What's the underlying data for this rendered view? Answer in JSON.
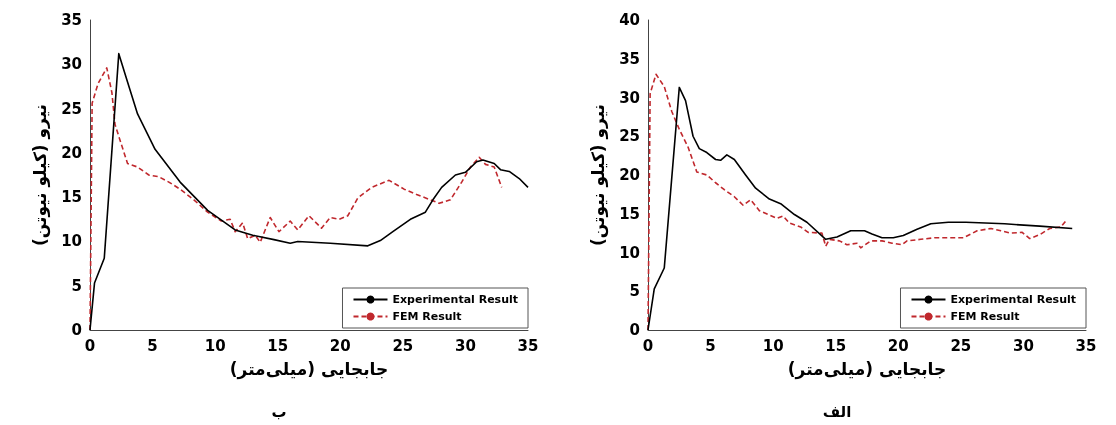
{
  "chart_data": [
    {
      "type": "line",
      "xlabel": "جابجایی (میلی‌متر)",
      "ylabel": "نیرو (کیلو نیوتن)",
      "annotations": [
        "ب"
      ],
      "xlim": [
        0,
        35
      ],
      "xticks": [
        0,
        5,
        10,
        15,
        20,
        25,
        30,
        35
      ],
      "ylim": [
        0,
        35
      ],
      "yticks": [
        0,
        5,
        10,
        15,
        20,
        25,
        30,
        35
      ],
      "grid": false,
      "legend": "bottom right",
      "marker": "none",
      "series": [
        {
          "name": "Experimental Result",
          "color": "#000000",
          "line_style": "solid",
          "x": [
            0,
            0.36,
            1.14,
            2.3,
            3.0,
            3.8,
            5.2,
            7.2,
            9.4,
            11.6,
            13.0,
            14.7,
            16.0,
            16.6,
            19.2,
            22.2,
            23.2,
            24.2,
            25.6,
            26.8,
            27.4,
            28.1,
            29.2,
            30.0,
            30.9,
            31.4,
            32.3,
            32.8,
            33.5,
            34.3,
            35.0
          ],
          "values": [
            0,
            5.3,
            8.1,
            31.2,
            28,
            24.4,
            20.4,
            16.7,
            13.5,
            11.3,
            10.7,
            10.2,
            9.8,
            10.0,
            9.8,
            9.5,
            10.1,
            11.1,
            12.5,
            13.3,
            14.7,
            16.1,
            17.5,
            17.8,
            19.0,
            19.2,
            18.8,
            18.1,
            17.9,
            17.1,
            16.1
          ]
        },
        {
          "name": "FEM Result",
          "color": "#c0282d",
          "line_style": "dashed",
          "x": [
            0,
            0.17,
            0.64,
            1.34,
            1.75,
            2.0,
            2.45,
            3.0,
            3.8,
            4.7,
            5.5,
            6.3,
            7.2,
            8.3,
            9.4,
            10.5,
            11.2,
            11.6,
            12.2,
            12.6,
            13.2,
            13.6,
            14.4,
            15.1,
            16.0,
            16.6,
            17.5,
            18.5,
            19.2,
            19.9,
            20.6,
            21.4,
            22.5,
            23.9,
            25.1,
            26.1,
            27.2,
            27.9,
            28.8,
            29.7,
            30.4,
            31.1,
            31.6,
            32.3,
            32.9
          ],
          "values": [
            0,
            25.6,
            27.8,
            29.6,
            26.8,
            23.2,
            21.2,
            18.8,
            18.4,
            17.5,
            17.3,
            16.7,
            15.9,
            14.7,
            13.3,
            12.3,
            12.5,
            11.1,
            12.1,
            10.3,
            10.7,
            9.9,
            12.7,
            11.1,
            12.3,
            11.3,
            12.9,
            11.5,
            12.7,
            12.5,
            12.9,
            14.9,
            16.1,
            16.9,
            15.9,
            15.3,
            14.7,
            14.3,
            14.7,
            16.7,
            18.4,
            19.5,
            18.7,
            18.4,
            16.1
          ]
        }
      ]
    },
    {
      "type": "line",
      "xlabel": "جابجایی (میلی‌متر)",
      "ylabel": "نیرو (کیلو نیوتن)",
      "annotations": [
        "الف"
      ],
      "xlim": [
        0,
        35
      ],
      "xticks": [
        0,
        5,
        10,
        15,
        20,
        25,
        30,
        35
      ],
      "ylim": [
        0,
        40
      ],
      "yticks": [
        0,
        5,
        10,
        15,
        20,
        25,
        30,
        35,
        40
      ],
      "grid": false,
      "legend": "bottom right",
      "marker": "none",
      "series": [
        {
          "name": "Experimental Result",
          "color": "#000000",
          "line_style": "solid",
          "x": [
            0,
            0.5,
            1.3,
            2.5,
            3.0,
            3.6,
            4.1,
            4.7,
            5.4,
            5.8,
            6.3,
            6.9,
            7.8,
            8.6,
            9.7,
            10.6,
            11.7,
            12.7,
            14.2,
            15.1,
            16.2,
            17.3,
            17.9,
            18.7,
            19.6,
            20.4,
            21.5,
            22.6,
            24.0,
            25.4,
            28.5,
            31.3,
            33.9
          ],
          "values": [
            0,
            5.3,
            8.0,
            31.3,
            29.6,
            25,
            23.4,
            22.9,
            22.0,
            21.9,
            22.6,
            22.0,
            20.0,
            18.3,
            16.9,
            16.3,
            14.9,
            13.9,
            11.7,
            12.0,
            12.8,
            12.8,
            12.4,
            11.9,
            11.9,
            12.2,
            13.0,
            13.7,
            13.9,
            13.9,
            13.7,
            13.4,
            13.1
          ]
        },
        {
          "name": "FEM Result",
          "color": "#c0282d",
          "line_style": "dashed",
          "x": [
            0,
            0.17,
            0.64,
            1.3,
            1.9,
            2.5,
            3.2,
            3.9,
            4.7,
            5.4,
            6.1,
            6.9,
            7.6,
            8.2,
            8.9,
            9.6,
            10.3,
            10.8,
            11.3,
            12.2,
            12.8,
            13.9,
            14.2,
            14.5,
            15.3,
            15.9,
            16.7,
            17.0,
            17.8,
            18.7,
            19.5,
            20.3,
            20.7,
            21.8,
            22.9,
            24.0,
            25.2,
            26.3,
            27.4,
            28.2,
            29.0,
            29.9,
            30.5,
            31.3,
            32.1,
            33.0,
            33.4
          ],
          "values": [
            0,
            30.5,
            33.0,
            31.4,
            28.2,
            25.9,
            23.6,
            20.4,
            20.0,
            19.0,
            18.1,
            17.2,
            16.1,
            16.8,
            15.4,
            14.9,
            14.4,
            14.7,
            13.8,
            13.3,
            12.6,
            12.5,
            10.8,
            11.7,
            11.5,
            11.0,
            11.2,
            10.6,
            11.5,
            11.5,
            11.2,
            11.0,
            11.5,
            11.7,
            11.9,
            11.9,
            11.9,
            12.8,
            13.1,
            12.8,
            12.5,
            12.6,
            11.8,
            12.3,
            13.1,
            13.3,
            14.1
          ]
        }
      ]
    }
  ]
}
